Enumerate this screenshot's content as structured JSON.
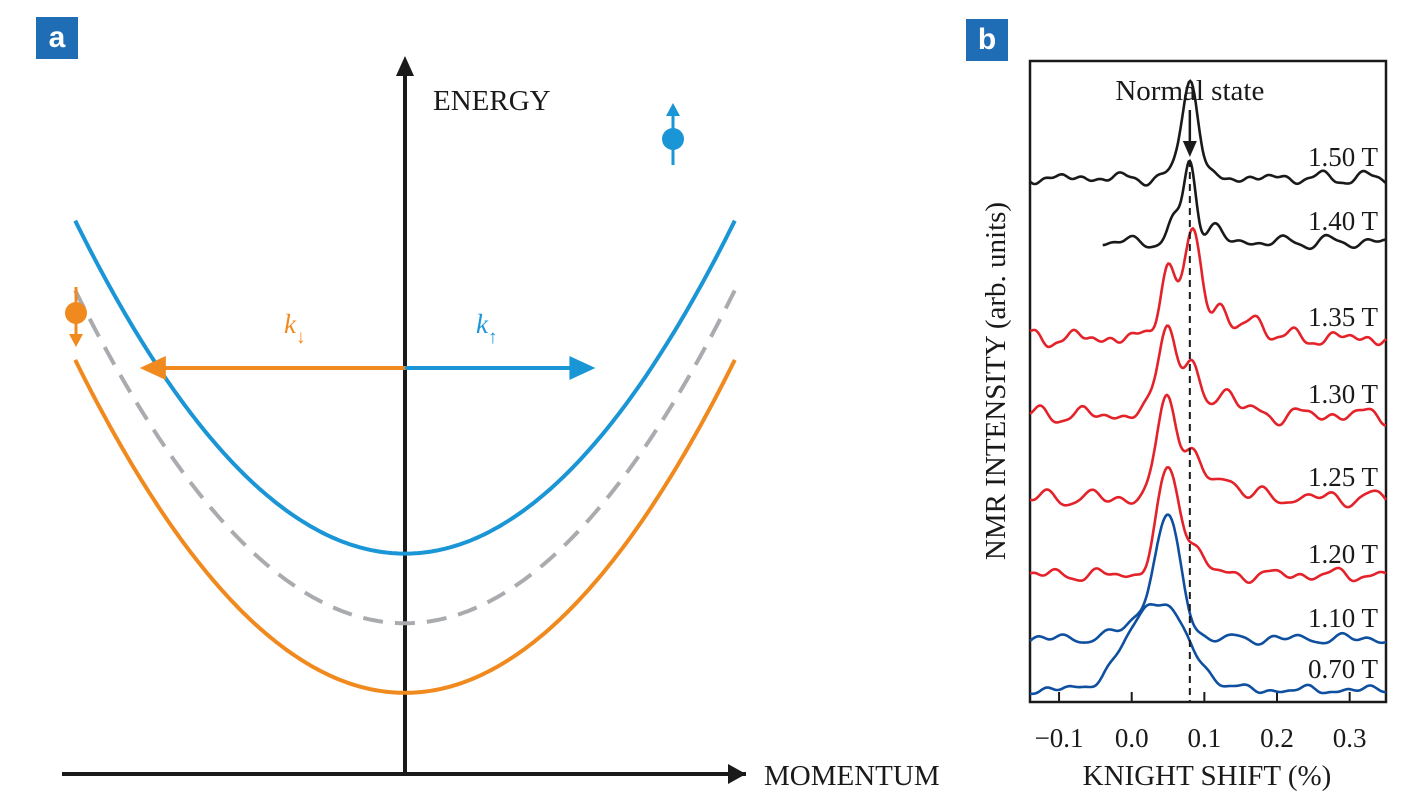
{
  "panels": {
    "a": {
      "label": "a"
    },
    "b": {
      "label": "b"
    }
  },
  "chart_data": [
    {
      "panel": "a",
      "type": "line",
      "title": "",
      "xlabel": "MOMENTUM",
      "ylabel": "ENERGY",
      "xlim": [
        -1,
        1
      ],
      "ylim": [
        0,
        1
      ],
      "series": [
        {
          "name": "spin-up band",
          "color": "#1a95d6",
          "style": "solid",
          "minimum": 0.38,
          "curvature": 0.61
        },
        {
          "name": "zero-field band",
          "color": "#a9abae",
          "style": "dashed",
          "minimum": 0.26,
          "curvature": 0.61
        },
        {
          "name": "spin-down band",
          "color": "#f08a1f",
          "style": "solid",
          "minimum": 0.14,
          "curvature": 0.61
        }
      ],
      "annotations": {
        "k_up": {
          "text": "k",
          "sub": "↑",
          "color": "#1a95d6",
          "x": 0.56
        },
        "k_down": {
          "text": "k",
          "sub": "↓",
          "color": "#f08a1f",
          "x": -0.78
        },
        "spin_up_icon": "spin-up-icon",
        "spin_down_icon": "spin-down-icon"
      }
    },
    {
      "panel": "b",
      "type": "line",
      "title": "",
      "xlabel": "KNIGHT SHIFT (%)",
      "ylabel": "NMR INTENSITY (arb. units)",
      "xlim": [
        -0.14,
        0.35
      ],
      "xticks": [
        -0.1,
        0.0,
        0.1,
        0.2,
        0.3
      ],
      "xtick_labels": [
        "−0.1",
        "0.0",
        "0.1",
        "0.2",
        "0.3"
      ],
      "normal_state_shift": 0.08,
      "normal_state_label": "Normal state",
      "series": [
        {
          "name": "1.50 T",
          "color": "#1a1a1a",
          "baseline": 0.8,
          "x_start": -0.14,
          "peaks": [
            [
              0.08,
              0.16,
              0.011
            ]
          ],
          "ripple": 0.006,
          "seed": 1
        },
        {
          "name": "1.40 T",
          "color": "#1a1a1a",
          "baseline": 0.7,
          "x_start": -0.04,
          "peaks": [
            [
              0.08,
              0.13,
              0.008
            ],
            [
              0.058,
              0.03,
              0.009
            ],
            [
              0.112,
              0.025,
              0.01
            ]
          ],
          "ripple": 0.006,
          "seed": 2
        },
        {
          "name": "1.35 T",
          "color": "#e32229",
          "baseline": 0.55,
          "x_start": -0.14,
          "peaks": [
            [
              0.085,
              0.17,
              0.011
            ],
            [
              0.05,
              0.12,
              0.011
            ],
            [
              0.12,
              0.05,
              0.012
            ],
            [
              0.17,
              0.03,
              0.015
            ]
          ],
          "ripple": 0.008,
          "seed": 3
        },
        {
          "name": "1.30 T",
          "color": "#e32229",
          "baseline": 0.43,
          "x_start": -0.14,
          "peaks": [
            [
              0.05,
              0.15,
              0.013
            ],
            [
              0.085,
              0.07,
              0.01
            ],
            [
              0.13,
              0.04,
              0.015
            ]
          ],
          "ripple": 0.008,
          "seed": 4
        },
        {
          "name": "1.25 T",
          "color": "#e32229",
          "baseline": 0.3,
          "x_start": -0.14,
          "peaks": [
            [
              0.05,
              0.16,
              0.014
            ],
            [
              0.085,
              0.06,
              0.012
            ],
            [
              0.13,
              0.03,
              0.02
            ]
          ],
          "ripple": 0.008,
          "seed": 5
        },
        {
          "name": "1.20 T",
          "color": "#e32229",
          "baseline": 0.18,
          "x_start": -0.14,
          "peaks": [
            [
              0.05,
              0.16,
              0.015
            ],
            [
              0.085,
              0.04,
              0.015
            ]
          ],
          "ripple": 0.006,
          "seed": 6
        },
        {
          "name": "1.10 T",
          "color": "#0e4fa0",
          "baseline": 0.08,
          "x_start": -0.14,
          "peaks": [
            [
              0.05,
              0.17,
              0.018
            ],
            [
              0.02,
              0.03,
              0.03
            ]
          ],
          "ripple": 0.005,
          "seed": 7
        },
        {
          "name": "0.70 T",
          "color": "#0e4fa0",
          "baseline": 0.0,
          "x_start": -0.14,
          "peaks": [
            [
              0.035,
              0.14,
              0.04
            ]
          ],
          "ripple": 0.004,
          "seed": 8
        }
      ]
    }
  ]
}
